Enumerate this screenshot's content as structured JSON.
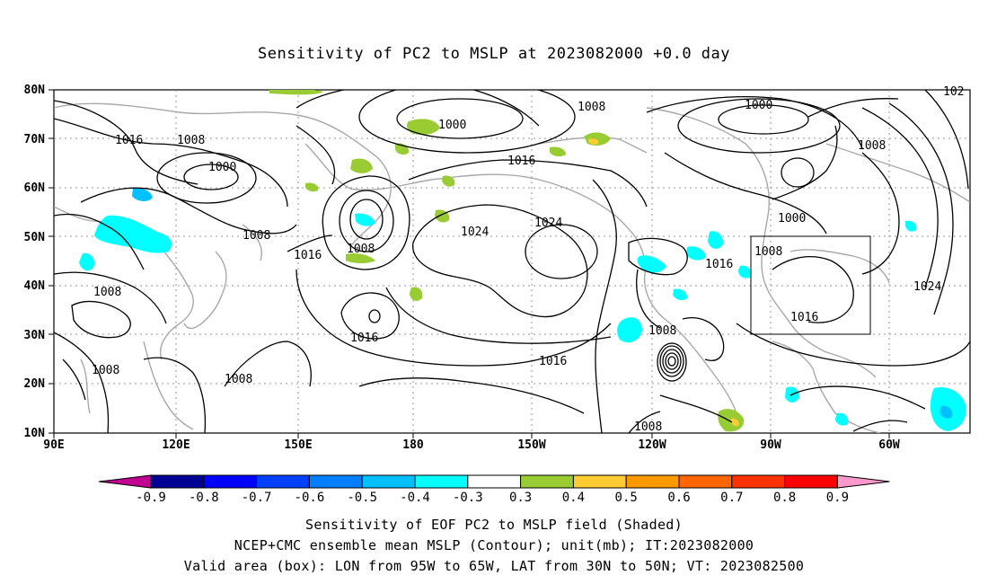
{
  "title": "Sensitivity of PC2 to MSLP at 2023082000 +0.0 day",
  "lat_labels": [
    "80N",
    "70N",
    "60N",
    "50N",
    "40N",
    "30N",
    "20N",
    "10N"
  ],
  "lon_labels": [
    "90E",
    "120E",
    "150E",
    "180",
    "150W",
    "120W",
    "90W",
    "60W"
  ],
  "contour_labels": {
    "l1016_a": "1016",
    "l1008_a": "1008",
    "l1000_a": "1000",
    "l1008_b": "1008",
    "l1000_b": "1000",
    "l1008_c": "1008",
    "l1016_b": "1016",
    "l1016_c": "1016",
    "l1024_a": "1024",
    "l1024_b": "1024",
    "l1008_d": "1008",
    "l1000_c": "1000",
    "l1008_e": "1008",
    "l1000_d": "1000",
    "l1008_f": "1008",
    "l1016_d": "1016",
    "l1016_e": "1016",
    "l1024_c": "1024",
    "l1008_g": "1008",
    "l1016_f": "1016",
    "l1008_h": "1008",
    "l1008_i": "1008",
    "l1008_j": "1008",
    "l1016_g": "1016",
    "l1008_k": "1008",
    "l102": "102"
  },
  "colorbar": {
    "labels": [
      "-0.9",
      "-0.8",
      "-0.7",
      "-0.6",
      "-0.5",
      "-0.4",
      "-0.3",
      "0.3",
      "0.4",
      "0.5",
      "0.6",
      "0.7",
      "0.8",
      "0.9"
    ],
    "colors": [
      "#000096",
      "#0000ff",
      "#0040ff",
      "#0080ff",
      "#00c0ff",
      "#00ffff",
      "#ffffff",
      "#99cc33",
      "#ffcc33",
      "#ff9900",
      "#ff6600",
      "#ff3300",
      "#ff0000"
    ],
    "low_end_color": "#c00090",
    "high_end_color": "#ff99cc"
  },
  "captions": {
    "line1": "Sensitivity of EOF PC2 to MSLP field (Shaded)",
    "line2": "NCEP+CMC ensemble mean MSLP (Contour); unit(mb); IT:2023082000",
    "line3": "Valid area (box): LON from 95W to 65W, LAT from 30N to 50N; VT: 2023082500"
  }
}
